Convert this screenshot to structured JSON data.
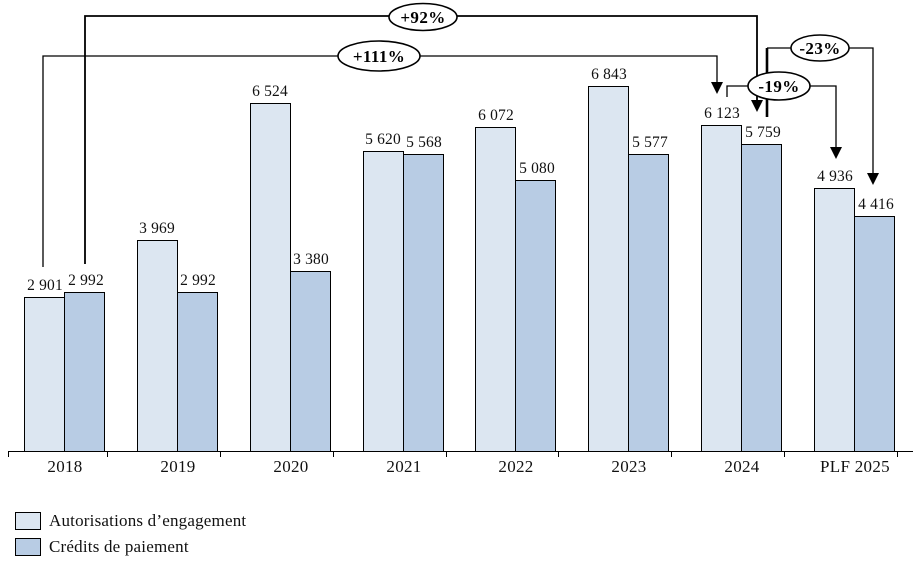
{
  "chart_data": {
    "type": "bar",
    "title": "",
    "xlabel": "",
    "ylabel": "",
    "categories": [
      "2018",
      "2019",
      "2020",
      "2021",
      "2022",
      "2023",
      "2024",
      "PLF 2025"
    ],
    "series": [
      {
        "id": "ae",
        "name": "Autorisations d’engagement",
        "color": "#dce6f1",
        "values": [
          2901,
          3969,
          6524,
          5620,
          6072,
          6843,
          6123,
          4936
        ],
        "labels": [
          "2 901",
          "3 969",
          "6 524",
          "5 620",
          "6 072",
          "6 843",
          "6 123",
          "4 936"
        ]
      },
      {
        "id": "cp",
        "name": "Crédits de paiement",
        "color": "#b8cce4",
        "values": [
          2992,
          2992,
          3380,
          5568,
          5080,
          5577,
          5759,
          4416
        ],
        "labels": [
          "2 992",
          "2 992",
          "3 380",
          "5 568",
          "5 080",
          "5 577",
          "5 759",
          "4 416"
        ]
      }
    ],
    "ylim": [
      0,
      7000
    ],
    "grid": false,
    "y_axis_visible": false,
    "legend_position": "bottom-left",
    "annotations": [
      {
        "label": "+92%",
        "from": "2018 Crédits de paiement",
        "to": "2024 Crédits de paiement"
      },
      {
        "label": "+111%",
        "from": "2018 Autorisations d’engagement",
        "to": "2024 Autorisations d’engagement"
      },
      {
        "label": "-19%",
        "from": "2024 Autorisations d’engagement",
        "to": "PLF 2025 Autorisations d’engagement"
      },
      {
        "label": "-23%",
        "from": "2024 Crédits de paiement",
        "to": "PLF 2025 Crédits de paiement"
      }
    ]
  },
  "legend": {
    "items": [
      {
        "label": "Autorisations d’engagement",
        "color": "#dce6f1"
      },
      {
        "label": "Crédits de paiement",
        "color": "#b8cce4"
      }
    ]
  },
  "colors": {
    "bar_ae": "#dce6f1",
    "bar_cp": "#b8cce4",
    "outline": "#000000",
    "background": "#ffffff"
  }
}
